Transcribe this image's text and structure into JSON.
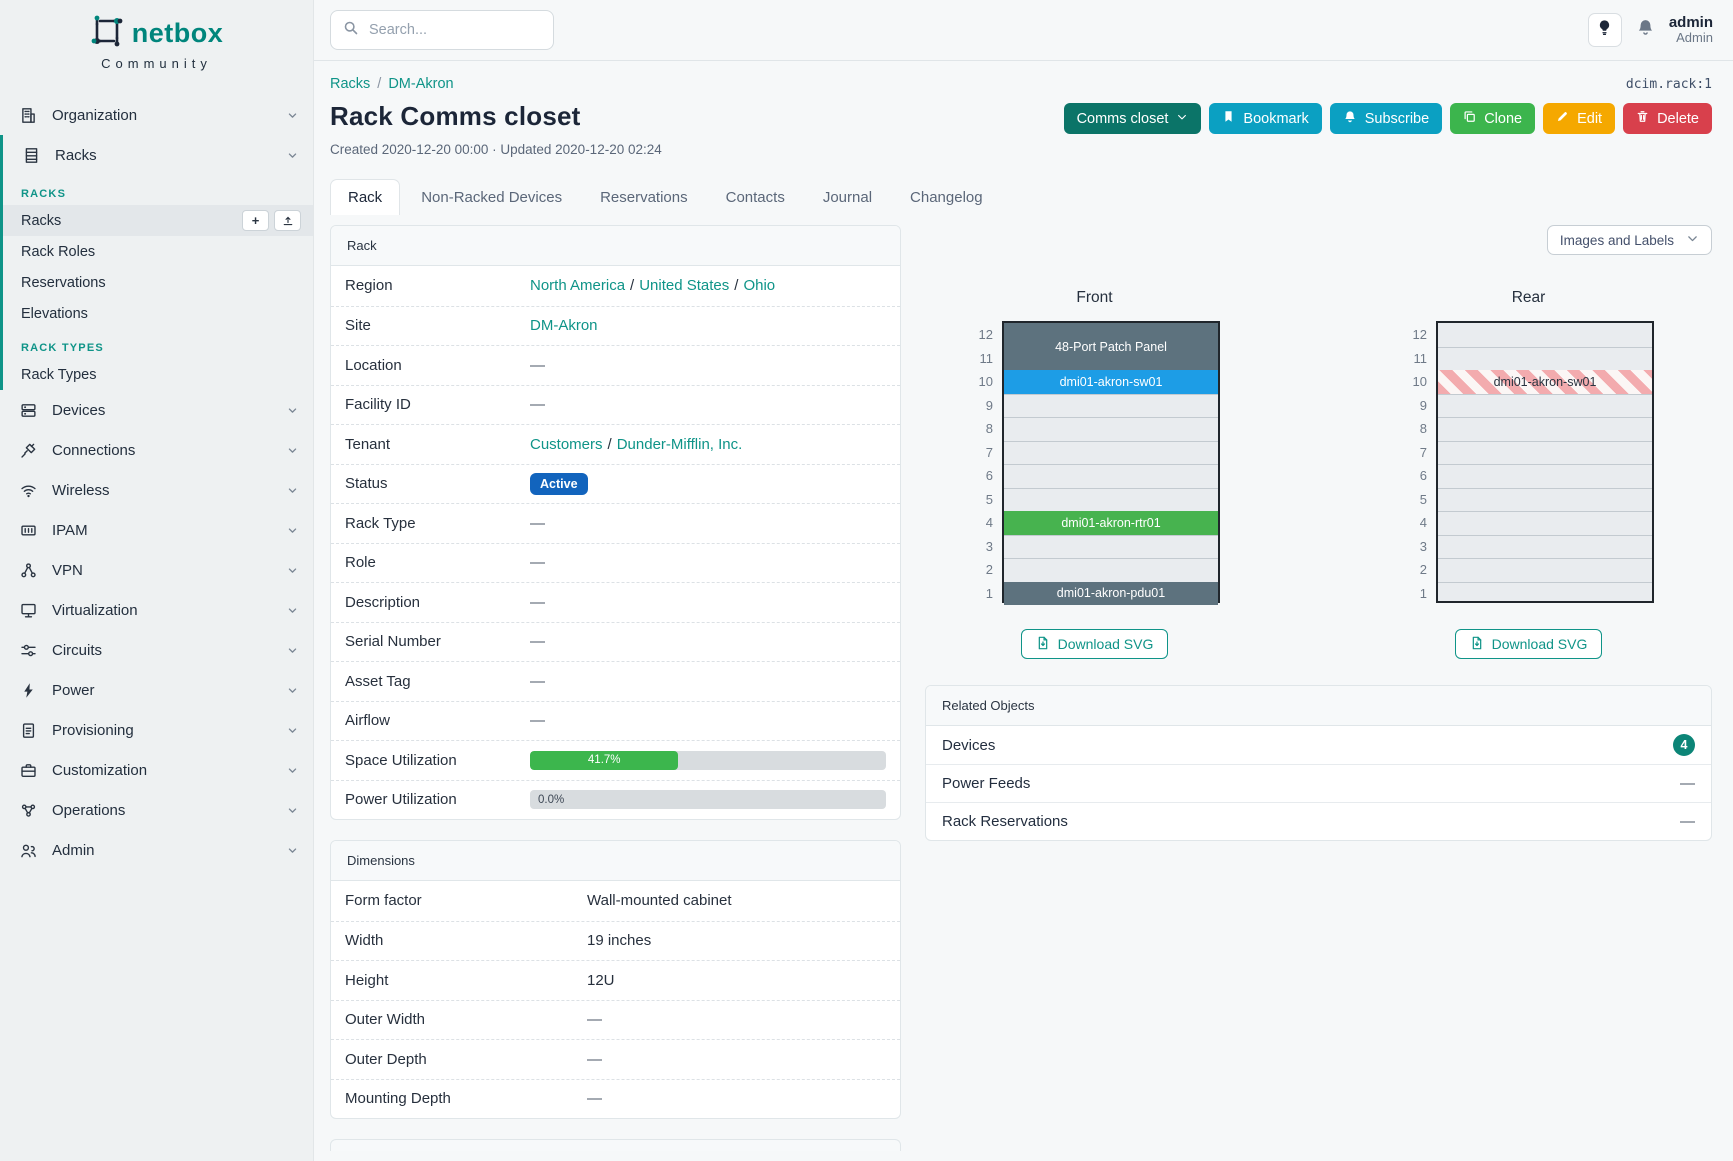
{
  "brand": {
    "name": "netbox",
    "subtitle": "Community"
  },
  "topbar": {
    "search_placeholder": "Search...",
    "user": {
      "name": "admin",
      "role": "Admin"
    },
    "icons": {
      "theme": "lightbulb-icon",
      "notifications": "bell-icon"
    }
  },
  "sidebar": {
    "top_items": [
      {
        "label": "Organization",
        "icon": "building-icon"
      }
    ],
    "racks_group": {
      "label": "Racks",
      "icon": "rack-icon",
      "sections": [
        {
          "heading": "RACKS",
          "items": [
            {
              "label": "Racks",
              "active": true,
              "actions": [
                "add",
                "import"
              ]
            },
            {
              "label": "Rack Roles"
            },
            {
              "label": "Reservations"
            },
            {
              "label": "Elevations"
            }
          ]
        },
        {
          "heading": "RACK TYPES",
          "items": [
            {
              "label": "Rack Types"
            }
          ]
        }
      ]
    },
    "items": [
      {
        "label": "Devices",
        "icon": "server-icon"
      },
      {
        "label": "Connections",
        "icon": "plug-icon"
      },
      {
        "label": "Wireless",
        "icon": "wifi-icon"
      },
      {
        "label": "IPAM",
        "icon": "ipam-icon"
      },
      {
        "label": "VPN",
        "icon": "network-icon"
      },
      {
        "label": "Virtualization",
        "icon": "monitor-icon"
      },
      {
        "label": "Circuits",
        "icon": "sliders-icon"
      },
      {
        "label": "Power",
        "icon": "bolt-icon"
      },
      {
        "label": "Provisioning",
        "icon": "clipboard-icon"
      },
      {
        "label": "Customization",
        "icon": "toolbox-icon"
      },
      {
        "label": "Operations",
        "icon": "nodes-icon"
      },
      {
        "label": "Admin",
        "icon": "users-icon"
      }
    ],
    "add_button_label": "+"
  },
  "breadcrumb": {
    "links": [
      "Racks",
      "DM-Akron"
    ],
    "object_ref": "dcim.rack:1"
  },
  "page": {
    "title": "Rack Comms closet",
    "meta": "Created 2020-12-20 00:00 · Updated 2020-12-20 02:24"
  },
  "actions": {
    "group": "Comms closet",
    "bookmark": "Bookmark",
    "subscribe": "Subscribe",
    "clone": "Clone",
    "edit": "Edit",
    "delete": "Delete"
  },
  "tabs": [
    {
      "label": "Rack",
      "active": true
    },
    {
      "label": "Non-Racked Devices"
    },
    {
      "label": "Reservations"
    },
    {
      "label": "Contacts"
    },
    {
      "label": "Journal"
    },
    {
      "label": "Changelog"
    }
  ],
  "rack_panel": {
    "title": "Rack",
    "rows": [
      {
        "label": "Region",
        "type": "links",
        "parts": [
          "North America",
          "United States",
          "Ohio"
        ]
      },
      {
        "label": "Site",
        "type": "links",
        "parts": [
          "DM-Akron"
        ]
      },
      {
        "label": "Location",
        "type": "empty",
        "value": "—"
      },
      {
        "label": "Facility ID",
        "type": "empty",
        "value": "—"
      },
      {
        "label": "Tenant",
        "type": "links",
        "parts": [
          "Customers",
          "Dunder-Mifflin, Inc."
        ]
      },
      {
        "label": "Status",
        "type": "badge",
        "value": "Active",
        "color": "#1264bd"
      },
      {
        "label": "Rack Type",
        "type": "empty",
        "value": "—"
      },
      {
        "label": "Role",
        "type": "empty",
        "value": "—"
      },
      {
        "label": "Description",
        "type": "empty",
        "value": "—"
      },
      {
        "label": "Serial Number",
        "type": "empty",
        "value": "—"
      },
      {
        "label": "Asset Tag",
        "type": "empty",
        "value": "—"
      },
      {
        "label": "Airflow",
        "type": "empty",
        "value": "—"
      },
      {
        "label": "Space Utilization",
        "type": "progress",
        "percent": 41.7,
        "display": "41.7%",
        "color": "#3cb64d"
      },
      {
        "label": "Power Utilization",
        "type": "progress",
        "percent": 0.0,
        "display": "0.0%",
        "color": "#3cb64d"
      }
    ]
  },
  "dimensions_panel": {
    "title": "Dimensions",
    "rows": [
      {
        "label": "Form factor",
        "value": "Wall-mounted cabinet"
      },
      {
        "label": "Width",
        "value": "19 inches"
      },
      {
        "label": "Height",
        "value": "12U"
      },
      {
        "label": "Outer Width",
        "value": "—"
      },
      {
        "label": "Outer Depth",
        "value": "—"
      },
      {
        "label": "Mounting Depth",
        "value": "—"
      }
    ]
  },
  "view_select": {
    "value": "Images and Labels"
  },
  "elevations": {
    "units": 12,
    "download_label": "Download SVG",
    "front": {
      "title": "Front",
      "devices": [
        {
          "name": "48-Port Patch Panel",
          "top_unit": 12,
          "height": 2,
          "color": "#5d727e"
        },
        {
          "name": "dmi01-akron-sw01",
          "top_unit": 10,
          "height": 1,
          "color": "#1d9de6"
        },
        {
          "name": "dmi01-akron-rtr01",
          "top_unit": 4,
          "height": 1,
          "color": "#47b34f"
        },
        {
          "name": "dmi01-akron-pdu01",
          "top_unit": 1,
          "height": 1,
          "color": "#5d727e"
        }
      ]
    },
    "rear": {
      "title": "Rear",
      "devices": [
        {
          "name": "dmi01-akron-sw01",
          "top_unit": 10,
          "height": 1,
          "striped": true,
          "stripe_colors": [
            "#f3abae",
            "#fbf6f5"
          ]
        }
      ]
    }
  },
  "related_objects": {
    "title": "Related Objects",
    "rows": [
      {
        "label": "Devices",
        "count": "4",
        "badge_color": "#0c8577"
      },
      {
        "label": "Power Feeds",
        "value": "—"
      },
      {
        "label": "Rack Reservations",
        "value": "—"
      }
    ]
  },
  "colors": {
    "brand_teal": "#00857c",
    "link_teal": "#0f9488",
    "sidebar_bg": "#eef1f2",
    "status_active": "#1264bd",
    "utilization_green": "#3cb64d",
    "button_group": "#0b7468",
    "button_info": "#0ba0c2",
    "button_clone": "#3cb54d",
    "button_edit": "#f5a800",
    "button_delete": "#d8404c"
  }
}
